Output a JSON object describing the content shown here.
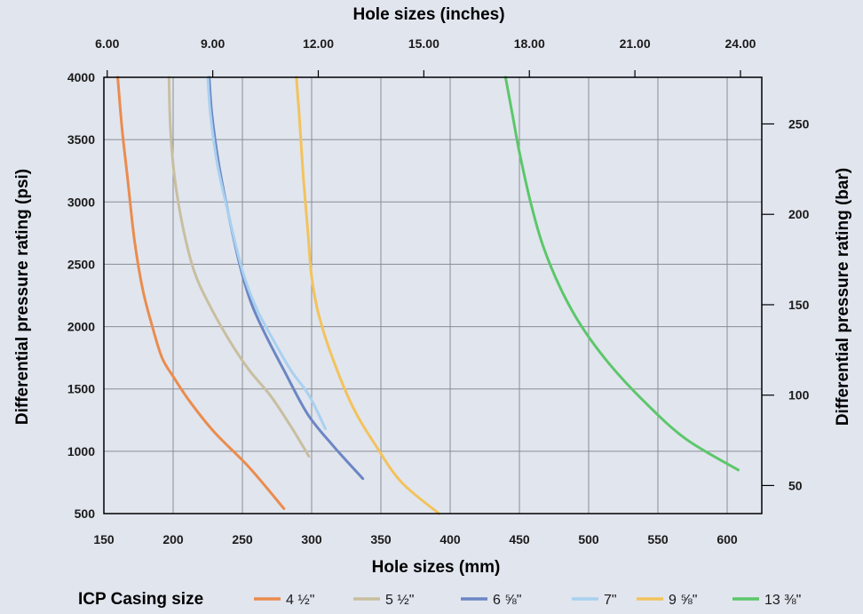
{
  "chart_data": {
    "type": "line",
    "top_xlabel": "Hole sizes (inches)",
    "top_xticks": [
      "6.00",
      "9.00",
      "12.00",
      "15.00",
      "18.00",
      "21.00",
      "24.00"
    ],
    "top_xtick_values": [
      6,
      9,
      12,
      15,
      18,
      21,
      24
    ],
    "xlabel": "Hole sizes (mm)",
    "xlim": [
      150,
      625
    ],
    "xticks": [
      150,
      200,
      250,
      300,
      350,
      400,
      450,
      500,
      550,
      600
    ],
    "ylabel": "Differential pressure rating (psi)",
    "ylim": [
      500,
      4000
    ],
    "yticks": [
      500,
      1000,
      1500,
      2000,
      2500,
      3000,
      3500,
      4000
    ],
    "y2label": "Differential pressure rating (bar)",
    "y2ticks": [
      50,
      100,
      150,
      200,
      250
    ],
    "grid": true,
    "legend_title": "ICP Casing size",
    "legend_position": "bottom",
    "series": [
      {
        "name": "4 ½\"",
        "color": "#ea8c4e",
        "points": [
          [
            160,
            4000
          ],
          [
            163,
            3600
          ],
          [
            167,
            3200
          ],
          [
            172,
            2700
          ],
          [
            178,
            2300
          ],
          [
            185,
            2000
          ],
          [
            192,
            1750
          ],
          [
            200,
            1600
          ],
          [
            212,
            1400
          ],
          [
            230,
            1150
          ],
          [
            255,
            870
          ],
          [
            280,
            540
          ]
        ]
      },
      {
        "name": "5 ½\"",
        "color": "#c8bfa0",
        "points": [
          [
            197,
            4000
          ],
          [
            198,
            3600
          ],
          [
            201,
            3200
          ],
          [
            207,
            2800
          ],
          [
            215,
            2450
          ],
          [
            225,
            2200
          ],
          [
            240,
            1900
          ],
          [
            255,
            1650
          ],
          [
            270,
            1450
          ],
          [
            285,
            1200
          ],
          [
            298,
            960
          ]
        ]
      },
      {
        "name": "6 ⅝\"",
        "color": "#6c86c4",
        "points": [
          [
            226,
            4000
          ],
          [
            228,
            3700
          ],
          [
            233,
            3300
          ],
          [
            240,
            2900
          ],
          [
            248,
            2500
          ],
          [
            256,
            2200
          ],
          [
            266,
            1950
          ],
          [
            280,
            1650
          ],
          [
            297,
            1300
          ],
          [
            315,
            1050
          ],
          [
            337,
            780
          ]
        ]
      },
      {
        "name": "7\"",
        "color": "#a9d1f0",
        "points": [
          [
            225,
            4000
          ],
          [
            227,
            3700
          ],
          [
            232,
            3300
          ],
          [
            240,
            2900
          ],
          [
            250,
            2450
          ],
          [
            260,
            2150
          ],
          [
            272,
            1900
          ],
          [
            285,
            1650
          ],
          [
            298,
            1450
          ],
          [
            310,
            1180
          ]
        ]
      },
      {
        "name": "9 ⅝\"",
        "color": "#f2c35c",
        "points": [
          [
            289,
            4000
          ],
          [
            291,
            3700
          ],
          [
            294,
            3200
          ],
          [
            297,
            2800
          ],
          [
            300,
            2400
          ],
          [
            305,
            2100
          ],
          [
            315,
            1750
          ],
          [
            330,
            1350
          ],
          [
            346,
            1050
          ],
          [
            365,
            750
          ],
          [
            392,
            500
          ]
        ]
      },
      {
        "name": "13 ⅜\"",
        "color": "#5cc76a",
        "points": [
          [
            440,
            4000
          ],
          [
            445,
            3700
          ],
          [
            450,
            3400
          ],
          [
            458,
            3000
          ],
          [
            467,
            2650
          ],
          [
            480,
            2300
          ],
          [
            495,
            2000
          ],
          [
            515,
            1700
          ],
          [
            540,
            1400
          ],
          [
            570,
            1100
          ],
          [
            608,
            850
          ]
        ]
      }
    ]
  }
}
